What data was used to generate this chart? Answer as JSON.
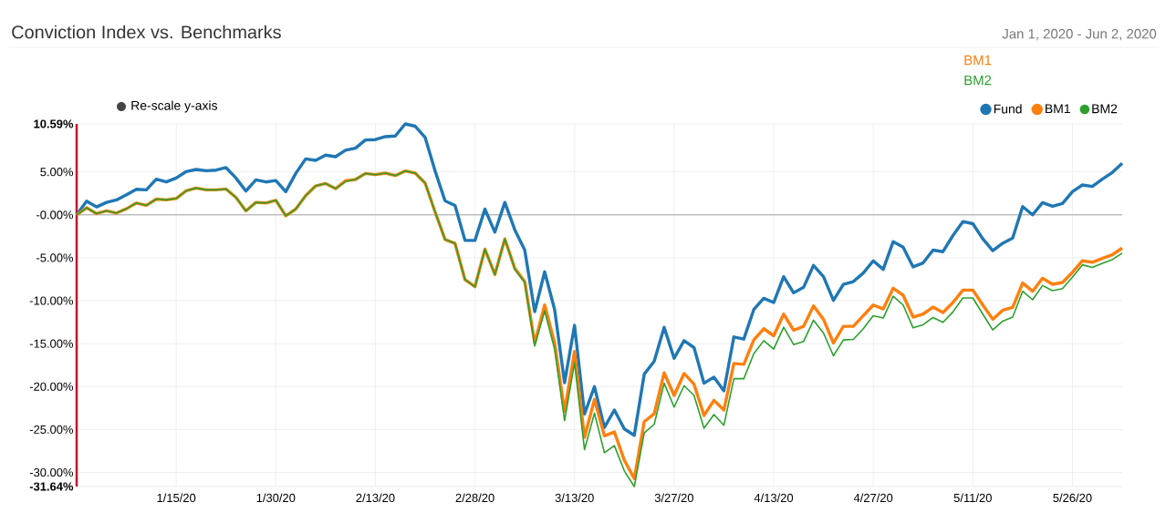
{
  "chart_data": {
    "type": "line",
    "title": "Conviction Index vs. Benchmarks",
    "subtitle": "Jan 1, 2020 - Jun 2, 2020",
    "annotations": [
      "Re-scale y-axis",
      "BM1",
      "BM2"
    ],
    "categories": [
      null,
      null,
      null,
      null,
      null,
      null,
      null,
      null,
      null,
      null,
      "1/15/20",
      null,
      null,
      null,
      null,
      null,
      null,
      null,
      null,
      null,
      "1/30/20",
      null,
      null,
      null,
      null,
      null,
      null,
      null,
      null,
      null,
      "2/13/20",
      null,
      null,
      null,
      null,
      null,
      null,
      null,
      null,
      null,
      "2/28/20",
      null,
      null,
      null,
      null,
      null,
      null,
      null,
      null,
      null,
      "3/13/20",
      null,
      null,
      null,
      null,
      null,
      null,
      null,
      null,
      null,
      "3/27/20",
      null,
      null,
      null,
      null,
      null,
      null,
      null,
      null,
      null,
      "4/13/20",
      null,
      null,
      null,
      null,
      null,
      null,
      null,
      null,
      null,
      "4/27/20",
      null,
      null,
      null,
      null,
      null,
      null,
      null,
      null,
      null,
      "5/11/20",
      null,
      null,
      null,
      null,
      null,
      null,
      null,
      null,
      null,
      "5/26/20",
      null,
      null,
      null,
      null,
      null
    ],
    "series": [
      {
        "name": "Fund",
        "color": "#1f77b4",
        "values": [
          0,
          1.6,
          0.92,
          1.45,
          1.74,
          2.34,
          2.98,
          2.91,
          4.15,
          3.83,
          4.29,
          5.04,
          5.28,
          5.14,
          5.21,
          5.5,
          4.29,
          2.77,
          4.08,
          3.83,
          4.0,
          2.7,
          4.82,
          6.52,
          6.35,
          6.95,
          6.77,
          7.52,
          7.77,
          8.72,
          8.76,
          9.11,
          9.18,
          10.59,
          10.32,
          9.0,
          5.1,
          1.63,
          1.1,
          -2.98,
          -2.98,
          0.67,
          -2.02,
          1.45,
          -1.74,
          -4.11,
          -11.28,
          -6.63,
          -11.03,
          -19.54,
          -12.87,
          -23.19,
          -20.0,
          -24.75,
          -22.73,
          -24.93,
          -25.67,
          -18.55,
          -17.06,
          -13.09,
          -16.7,
          -14.65,
          -15.46,
          -19.61,
          -18.9,
          -20.5,
          -14.22,
          -14.47,
          -11.03,
          -9.72,
          -10.21,
          -7.2,
          -9.08,
          -8.44,
          -5.89,
          -7.2,
          -9.96,
          -8.09,
          -7.77,
          -6.77,
          -5.35,
          -6.35,
          -3.12,
          -3.76,
          -6.06,
          -5.6,
          -4.11,
          -4.29,
          -2.41,
          -0.78,
          -1.03,
          -2.8,
          -4.18,
          -3.3,
          -2.7,
          0.96,
          0,
          1.42,
          0.99,
          1.31,
          2.7,
          3.48,
          3.3,
          4.15,
          4.93,
          5.99
        ]
      },
      {
        "name": "BM1",
        "color": "#ff7f0e",
        "values": [
          0,
          0.82,
          0.14,
          0.46,
          0.21,
          0.71,
          1.38,
          1.1,
          1.84,
          1.74,
          1.91,
          2.8,
          3.12,
          2.91,
          2.91,
          3.01,
          2.02,
          0.46,
          1.45,
          1.38,
          1.7,
          -0.11,
          0.67,
          2.23,
          3.37,
          3.65,
          3.05,
          3.97,
          4.11,
          4.82,
          4.68,
          4.86,
          4.57,
          5.11,
          4.86,
          3.69,
          0.32,
          -2.87,
          -3.33,
          -7.55,
          -8.37,
          -4.0,
          -6.95,
          -2.8,
          -6.24,
          -7.77,
          -14.93,
          -10.5,
          -14.93,
          -22.9,
          -15.92,
          -25.92,
          -21.49,
          -25.74,
          -25.28,
          -28.58,
          -30.71,
          -24.08,
          -23.16,
          -18.4,
          -21.03,
          -18.48,
          -19.72,
          -23.37,
          -21.6,
          -22.73,
          -17.3,
          -17.41,
          -14.57,
          -13.26,
          -14.08,
          -11.56,
          -13.44,
          -12.98,
          -10.6,
          -12.16,
          -14.93,
          -12.98,
          -12.98,
          -11.74,
          -10.5,
          -10.96,
          -8.55,
          -9.36,
          -11.91,
          -11.56,
          -10.74,
          -11.38,
          -10.21,
          -8.76,
          -8.76,
          -10.5,
          -12.16,
          -11.1,
          -10.78,
          -7.94,
          -8.9,
          -7.38,
          -8.09,
          -7.87,
          -6.7,
          -5.35,
          -5.53,
          -5.07,
          -4.65,
          -3.87
        ]
      },
      {
        "name": "BM2",
        "color": "#2ca02c",
        "values": [
          0,
          0.82,
          0.14,
          0.46,
          0.21,
          0.71,
          1.38,
          1.1,
          1.84,
          1.74,
          1.91,
          2.8,
          3.12,
          2.91,
          2.91,
          3.01,
          2.02,
          0.46,
          1.45,
          1.38,
          1.7,
          -0.11,
          0.67,
          2.23,
          3.37,
          3.65,
          3.05,
          3.87,
          4.11,
          4.82,
          4.68,
          4.86,
          4.57,
          5.11,
          4.86,
          3.69,
          0.32,
          -2.87,
          -3.33,
          -7.55,
          -8.37,
          -4.0,
          -6.95,
          -2.8,
          -6.3,
          -7.9,
          -15.28,
          -11.2,
          -15.64,
          -23.97,
          -17.23,
          -27.34,
          -23.09,
          -27.7,
          -26.88,
          -29.82,
          -31.64,
          -25.39,
          -24.4,
          -19.61,
          -22.38,
          -19.89,
          -21.03,
          -24.86,
          -23.26,
          -24.5,
          -19.08,
          -19.08,
          -16.17,
          -14.65,
          -15.64,
          -13.09,
          -15.11,
          -14.75,
          -12.27,
          -13.76,
          -16.42,
          -14.57,
          -14.5,
          -13.26,
          -11.74,
          -12.02,
          -9.47,
          -10.5,
          -13.16,
          -12.8,
          -11.95,
          -12.52,
          -11.31,
          -9.68,
          -9.68,
          -11.56,
          -13.4,
          -12.38,
          -11.91,
          -8.9,
          -9.89,
          -8.23,
          -8.83,
          -8.58,
          -7.27,
          -5.82,
          -6.13,
          -5.64,
          -5.21,
          -4.47
        ]
      }
    ],
    "ylim": [
      -31.64,
      10.59
    ],
    "yticks": [
      {
        "value": 10.59,
        "label": "10.59%"
      },
      {
        "value": 5,
        "label": "5.00%"
      },
      {
        "value": 0,
        "label": "-0.00%"
      },
      {
        "value": -5,
        "label": "-5.00%"
      },
      {
        "value": -10,
        "label": "-10.00%"
      },
      {
        "value": -15,
        "label": "-15.00%"
      },
      {
        "value": -20,
        "label": "-20.00%"
      },
      {
        "value": -25,
        "label": "-25.00%"
      },
      {
        "value": -30,
        "label": "-30.00%"
      },
      {
        "value": -31.64,
        "label": "-31.64%"
      }
    ],
    "ref_lines": [
      {
        "axis": "y",
        "value": 0,
        "color": "#999999"
      }
    ],
    "grid": true,
    "legend": "top right"
  }
}
